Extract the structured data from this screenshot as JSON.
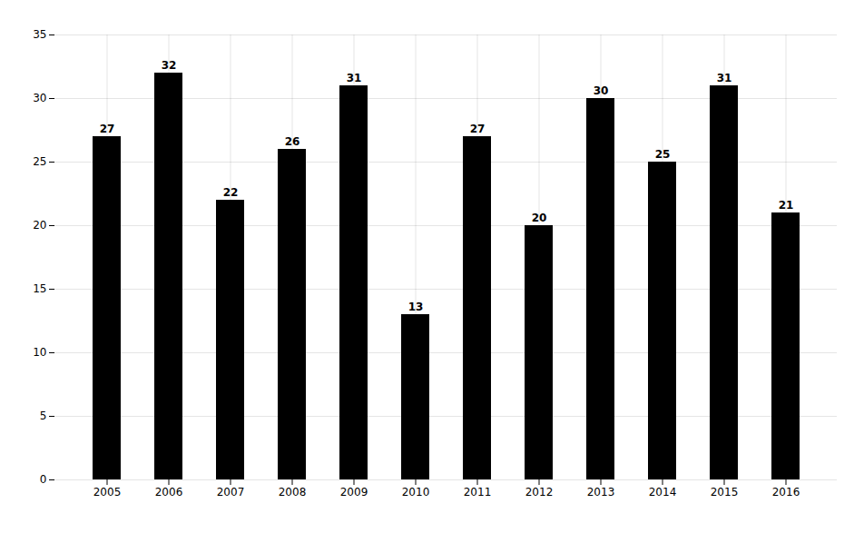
{
  "chart_data": {
    "type": "bar",
    "categories": [
      "2005",
      "2006",
      "2007",
      "2008",
      "2009",
      "2010",
      "2011",
      "2012",
      "2013",
      "2014",
      "2015",
      "2016"
    ],
    "values": [
      27,
      32,
      22,
      26,
      31,
      13,
      27,
      20,
      30,
      25,
      31,
      21
    ],
    "ylim": [
      0,
      35
    ],
    "yticks": [
      0,
      5,
      10,
      15,
      20,
      25,
      30,
      35
    ],
    "grid": true,
    "data_labels": true
  }
}
